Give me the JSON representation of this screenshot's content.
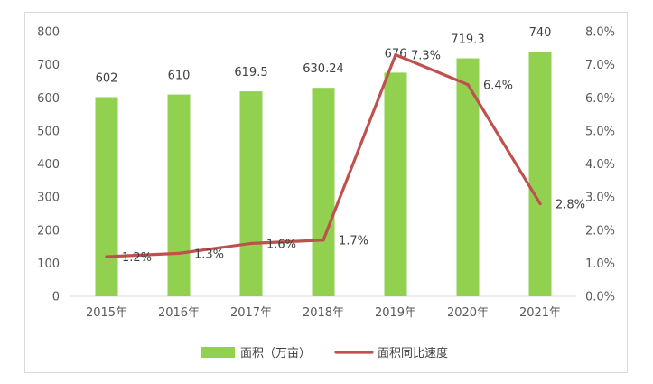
{
  "chart_data": {
    "type": "bar",
    "categories": [
      "2015年",
      "2016年",
      "2017年",
      "2018年",
      "2019年",
      "2020年",
      "2021年"
    ],
    "series": [
      {
        "name": "面积（万亩）",
        "type": "bar",
        "axis": "left",
        "values": [
          602,
          610,
          619.5,
          630.24,
          676,
          719.3,
          740
        ],
        "labels": [
          "602",
          "610",
          "619.5",
          "630.24",
          "676",
          "719.3",
          "740"
        ],
        "color": "#92d050"
      },
      {
        "name": "面积同比速度",
        "type": "line",
        "axis": "right",
        "values": [
          1.2,
          1.3,
          1.6,
          1.7,
          7.3,
          6.4,
          2.8
        ],
        "labels": [
          "1.2%",
          "1.3%",
          "1.6%",
          "1.7%",
          "7.3%",
          "6.4%",
          "2.8%"
        ],
        "color": "#c0504d"
      }
    ],
    "ylim_left": [
      0,
      800
    ],
    "yticks_left": [
      "0",
      "100",
      "200",
      "300",
      "400",
      "500",
      "600",
      "700",
      "800"
    ],
    "ylim_right": [
      0,
      8
    ],
    "yticks_right": [
      "0.0%",
      "1.0%",
      "2.0%",
      "3.0%",
      "4.0%",
      "5.0%",
      "6.0%",
      "7.0%",
      "8.0%"
    ],
    "legend_position": "bottom",
    "grid": false
  }
}
